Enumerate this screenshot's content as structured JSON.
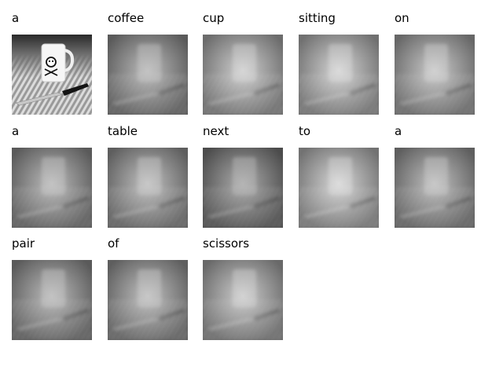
{
  "figure": {
    "words": [
      "a",
      "coffee",
      "cup",
      "sitting",
      "on",
      "a",
      "table",
      "next",
      "to",
      "a",
      "pair",
      "of",
      "scissors"
    ],
    "tiles": [
      {
        "kind": "original"
      },
      {
        "kind": "attention",
        "brightness": 0.55
      },
      {
        "kind": "attention",
        "brightness": 0.75
      },
      {
        "kind": "attention",
        "brightness": 0.8
      },
      {
        "kind": "attention",
        "brightness": 0.7
      },
      {
        "kind": "attention",
        "brightness": 0.55
      },
      {
        "kind": "attention",
        "brightness": 0.6
      },
      {
        "kind": "attention",
        "brightness": 0.4
      },
      {
        "kind": "attention",
        "brightness": 0.82
      },
      {
        "kind": "attention",
        "brightness": 0.6
      },
      {
        "kind": "attention",
        "brightness": 0.55
      },
      {
        "kind": "attention",
        "brightness": 0.6
      },
      {
        "kind": "attention",
        "brightness": 0.72
      }
    ],
    "colors": {
      "mug": "#f4f4f4",
      "knife_blade": "#b8b8b8",
      "knife_handle": "#1a1a1a",
      "background": "#5a5a5a"
    }
  }
}
